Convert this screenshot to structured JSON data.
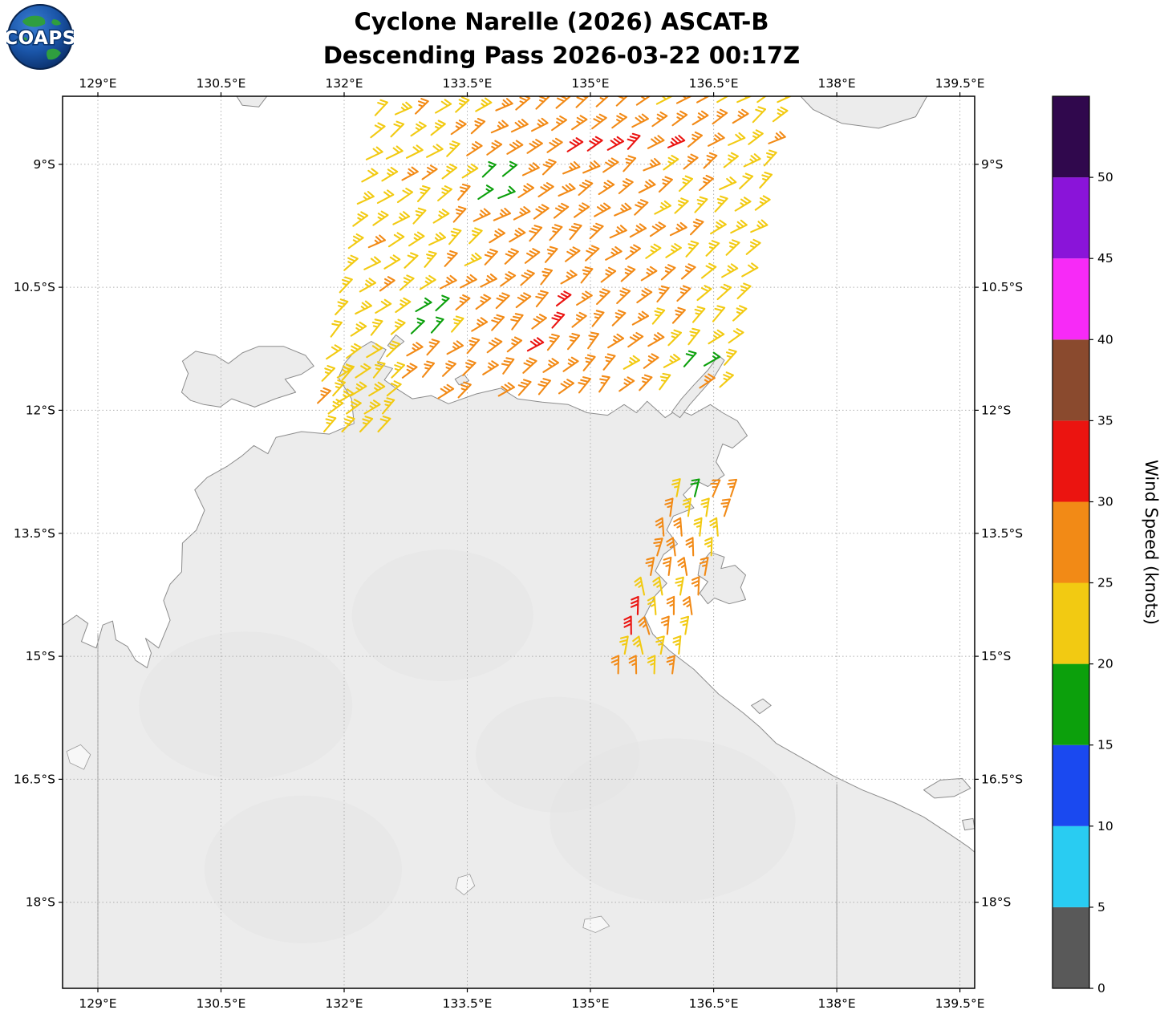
{
  "title": {
    "line1": "Cyclone Narelle (2026) ASCAT-B",
    "line2": "Descending Pass 2026-03-22 00:17Z"
  },
  "logo": {
    "text": "COAPS"
  },
  "chart_data": {
    "type": "wind_barb_map",
    "title": "Cyclone Narelle (2026) ASCAT-B — Descending Pass 2026-03-22 00:17Z",
    "units": "knots",
    "wind_speed_range_depicted": [
      15,
      33
    ],
    "dominant_speeds_note": "Most barbs 20-25 kt (yellow) and 25-30 kt (orange); sparse 15-20 kt (green) and 30-35 kt (red) cells",
    "axes": {
      "extent": {
        "lon_min": 128.57,
        "lon_max": 139.68,
        "lat_min": 8.17,
        "lat_max": 19.05
      },
      "lon_tick_values": [
        129,
        130.5,
        132,
        133.5,
        135,
        136.5,
        138,
        139.5
      ],
      "lon_tick_labels": [
        "129°E",
        "130.5°E",
        "132°E",
        "133.5°E",
        "135°E",
        "136.5°E",
        "138°E",
        "139.5°E"
      ],
      "lat_tick_values": [
        9,
        10.5,
        12,
        13.5,
        15,
        16.5,
        18
      ],
      "lat_tick_labels": [
        "9°S",
        "10.5°S",
        "12°S",
        "13.5°S",
        "15°S",
        "16.5°S",
        "18°S"
      ]
    },
    "colorbar": {
      "label": "Wind Speed (knots)",
      "tick_values": [
        0,
        5,
        10,
        15,
        20,
        25,
        30,
        35,
        40,
        45,
        50
      ],
      "max_value": 55,
      "segments": [
        {
          "from": 0,
          "to": 5,
          "color": "#595959"
        },
        {
          "from": 5,
          "to": 10,
          "color": "#29ccf2"
        },
        {
          "from": 10,
          "to": 15,
          "color": "#1a49f0"
        },
        {
          "from": 15,
          "to": 20,
          "color": "#0ca00c"
        },
        {
          "from": 20,
          "to": 25,
          "color": "#f2ca12"
        },
        {
          "from": 25,
          "to": 30,
          "color": "#f28a16"
        },
        {
          "from": 30,
          "to": 35,
          "color": "#eb1410"
        },
        {
          "from": 35,
          "to": 40,
          "color": "#8a4a2e"
        },
        {
          "from": 40,
          "to": 45,
          "color": "#f72af7"
        },
        {
          "from": 45,
          "to": 50,
          "color": "#8a14d9"
        },
        {
          "from": 50,
          "to": 55,
          "color": "#30084d"
        }
      ]
    },
    "wind_field": {
      "barb_style": {
        "staff_len": 22,
        "full_tick": 9,
        "half_tick": 5,
        "tick_spacing": 4.6,
        "tick_angle_offset": -115,
        "stroke_width": 2.1
      },
      "swaths": [
        {
          "name": "north-swath",
          "lat_start": 8.3,
          "lat_end": 11.95,
          "lat_step": 0.27,
          "lon_left_at_start": 132.38,
          "lon_right_at_start": 137.45,
          "edge_drift_per_lat": -0.2,
          "lon_step": 0.245,
          "row_lat_tilt": -0.04,
          "dir_base": -33,
          "dir_jitter": 14,
          "dir_drift_per_lat": -2.5,
          "speed_base": 23.5,
          "speed_center_boost": 4.5,
          "speed_jitter": 2.2,
          "coast_mask": [
            [
              131.7,
              12.45
            ],
            [
              132.3,
              11.35
            ],
            [
              132.6,
              11.55
            ],
            [
              132.95,
              11.9
            ],
            [
              133.6,
              11.82
            ],
            [
              134.2,
              11.9
            ],
            [
              134.9,
              11.95
            ],
            [
              135.35,
              12.0
            ],
            [
              135.75,
              11.9
            ],
            [
              136.1,
              11.55
            ],
            [
              136.35,
              11.75
            ],
            [
              136.6,
              11.95
            ],
            [
              137.2,
              12.2
            ]
          ]
        },
        {
          "name": "gulf-strip",
          "lat_start": 13.05,
          "lat_end": 15.3,
          "lat_step": 0.24,
          "center_lon_at_start": 136.38,
          "center_drift_per_lat": -0.33,
          "half_width": 0.33,
          "lon_step": 0.22,
          "dir_base": -78,
          "dir_jitter": 16,
          "dir_drift_per_lat": -8,
          "speed_base": 25.5,
          "speed_jitter": 2.2
        },
        {
          "name": "west-patch",
          "lat_start": 11.6,
          "lat_end": 12.45,
          "lat_step": 0.22,
          "center_lon_at_start": 132.3,
          "center_drift_per_lat": -0.25,
          "half_width": 0.38,
          "lon_step": 0.22,
          "dir_base": -40,
          "dir_jitter": 12,
          "dir_drift_per_lat": 0,
          "speed_base": 23,
          "speed_jitter": 1.8
        }
      ],
      "anomalies": [
        {
          "type": "green",
          "lon": 133.85,
          "lat": 9.2,
          "radius": 0.33,
          "speed": 17
        },
        {
          "type": "green",
          "lon": 132.95,
          "lat": 10.9,
          "radius": 0.26,
          "speed": 17
        },
        {
          "type": "green",
          "lon": 136.3,
          "lat": 11.45,
          "radius": 0.22,
          "speed": 17
        },
        {
          "type": "green",
          "lon": 136.22,
          "lat": 13.1,
          "radius": 0.13,
          "speed": 17
        },
        {
          "type": "red",
          "lon": 135.3,
          "lat": 8.78,
          "radius": 0.2,
          "speed": 32
        },
        {
          "type": "red",
          "lon": 136.05,
          "lat": 8.9,
          "radius": 0.16,
          "speed": 32
        },
        {
          "type": "red",
          "lon": 134.55,
          "lat": 10.85,
          "radius": 0.2,
          "speed": 32
        },
        {
          "type": "red",
          "lon": 135.55,
          "lat": 14.6,
          "radius": 0.18,
          "speed": 32
        }
      ]
    },
    "geography": {
      "land_color": "#ececec",
      "coast_color": "#8c8c8c",
      "mainland": [
        [
          128.57,
          14.62
        ],
        [
          128.74,
          14.5
        ],
        [
          128.88,
          14.6
        ],
        [
          128.8,
          14.82
        ],
        [
          128.98,
          14.9
        ],
        [
          129.06,
          14.62
        ],
        [
          129.18,
          14.57
        ],
        [
          129.22,
          14.8
        ],
        [
          129.36,
          14.88
        ],
        [
          129.46,
          15.05
        ],
        [
          129.6,
          15.14
        ],
        [
          129.65,
          14.96
        ],
        [
          129.58,
          14.78
        ],
        [
          129.74,
          14.9
        ],
        [
          129.88,
          14.56
        ],
        [
          129.8,
          14.32
        ],
        [
          129.88,
          14.12
        ],
        [
          130.02,
          13.97
        ],
        [
          130.03,
          13.62
        ],
        [
          130.2,
          13.46
        ],
        [
          130.3,
          13.22
        ],
        [
          130.18,
          12.97
        ],
        [
          130.33,
          12.82
        ],
        [
          130.58,
          12.68
        ],
        [
          130.75,
          12.56
        ],
        [
          130.9,
          12.43
        ],
        [
          131.07,
          12.53
        ],
        [
          131.17,
          12.33
        ],
        [
          131.48,
          12.26
        ],
        [
          131.82,
          12.29
        ],
        [
          132.12,
          12.16
        ],
        [
          132.09,
          11.86
        ],
        [
          131.93,
          11.6
        ],
        [
          132.01,
          11.42
        ],
        [
          132.13,
          11.28
        ],
        [
          132.33,
          11.16
        ],
        [
          132.51,
          11.26
        ],
        [
          132.41,
          11.43
        ],
        [
          132.59,
          11.49
        ],
        [
          132.49,
          11.63
        ],
        [
          132.63,
          11.73
        ],
        [
          132.83,
          11.86
        ],
        [
          133.06,
          11.82
        ],
        [
          133.27,
          11.92
        ],
        [
          133.61,
          11.8
        ],
        [
          133.91,
          11.73
        ],
        [
          134.11,
          11.86
        ],
        [
          134.41,
          11.9
        ],
        [
          134.73,
          11.93
        ],
        [
          134.96,
          12.03
        ],
        [
          135.21,
          12.06
        ],
        [
          135.41,
          11.93
        ],
        [
          135.56,
          12.03
        ],
        [
          135.69,
          11.89
        ],
        [
          135.91,
          12.09
        ],
        [
          136.06,
          11.99
        ],
        [
          136.23,
          12.06
        ],
        [
          136.46,
          11.93
        ],
        [
          136.61,
          12.03
        ],
        [
          136.79,
          12.13
        ],
        [
          136.91,
          12.31
        ],
        [
          136.73,
          12.46
        ],
        [
          136.61,
          12.41
        ],
        [
          136.53,
          12.63
        ],
        [
          136.63,
          12.79
        ],
        [
          136.43,
          12.93
        ],
        [
          136.29,
          12.86
        ],
        [
          136.13,
          13.03
        ],
        [
          136.26,
          13.19
        ],
        [
          136.01,
          13.29
        ],
        [
          135.93,
          13.46
        ],
        [
          136.06,
          13.63
        ],
        [
          135.89,
          13.76
        ],
        [
          135.79,
          13.96
        ],
        [
          135.93,
          14.11
        ],
        [
          135.79,
          14.26
        ],
        [
          135.66,
          14.51
        ],
        [
          135.76,
          14.73
        ],
        [
          135.96,
          14.93
        ],
        [
          136.26,
          15.16
        ],
        [
          136.56,
          15.46
        ],
        [
          136.86,
          15.69
        ],
        [
          137.06,
          15.86
        ],
        [
          137.26,
          16.06
        ],
        [
          137.61,
          16.26
        ],
        [
          137.96,
          16.46
        ],
        [
          138.31,
          16.63
        ],
        [
          138.71,
          16.79
        ],
        [
          139.06,
          16.96
        ],
        [
          139.36,
          17.16
        ],
        [
          139.61,
          17.33
        ],
        [
          139.68,
          17.39
        ],
        [
          139.68,
          19.05
        ],
        [
          128.57,
          19.05
        ]
      ],
      "islands": [
        [
          [
            130.02,
            11.78
          ],
          [
            130.1,
            11.55
          ],
          [
            130.03,
            11.4
          ],
          [
            130.19,
            11.28
          ],
          [
            130.43,
            11.33
          ],
          [
            130.59,
            11.43
          ],
          [
            130.76,
            11.3
          ],
          [
            130.96,
            11.22
          ],
          [
            131.26,
            11.22
          ],
          [
            131.53,
            11.33
          ],
          [
            131.63,
            11.46
          ],
          [
            131.48,
            11.56
          ],
          [
            131.28,
            11.62
          ],
          [
            131.41,
            11.78
          ],
          [
            131.16,
            11.86
          ],
          [
            130.91,
            11.96
          ],
          [
            130.63,
            11.86
          ],
          [
            130.49,
            11.96
          ],
          [
            130.29,
            11.93
          ],
          [
            130.13,
            11.88
          ]
        ],
        [
          [
            132.53,
            11.21
          ],
          [
            132.63,
            11.08
          ],
          [
            132.73,
            11.16
          ],
          [
            132.61,
            11.26
          ]
        ],
        [
          [
            135.99,
            12.02
          ],
          [
            136.11,
            11.86
          ],
          [
            136.26,
            11.69
          ],
          [
            136.43,
            11.51
          ],
          [
            136.56,
            11.33
          ],
          [
            136.63,
            11.39
          ],
          [
            136.51,
            11.59
          ],
          [
            136.36,
            11.76
          ],
          [
            136.21,
            11.93
          ],
          [
            136.09,
            12.09
          ]
        ],
        [
          [
            133.35,
            11.62
          ],
          [
            133.46,
            11.56
          ],
          [
            133.52,
            11.64
          ],
          [
            133.4,
            11.69
          ]
        ],
        [
          [
            136.33,
            13.89
          ],
          [
            136.46,
            13.73
          ],
          [
            136.63,
            13.79
          ],
          [
            136.59,
            13.93
          ],
          [
            136.76,
            13.89
          ],
          [
            136.89,
            14.01
          ],
          [
            136.83,
            14.16
          ],
          [
            136.89,
            14.31
          ],
          [
            136.69,
            14.36
          ],
          [
            136.51,
            14.29
          ],
          [
            136.43,
            14.36
          ],
          [
            136.33,
            14.23
          ],
          [
            136.43,
            14.09
          ],
          [
            136.31,
            14.01
          ]
        ],
        [
          [
            136.96,
            15.6
          ],
          [
            137.1,
            15.52
          ],
          [
            137.2,
            15.6
          ],
          [
            137.06,
            15.7
          ]
        ],
        [
          [
            139.06,
            16.63
          ],
          [
            139.26,
            16.51
          ],
          [
            139.53,
            16.49
          ],
          [
            139.63,
            16.61
          ],
          [
            139.43,
            16.71
          ],
          [
            139.19,
            16.73
          ]
        ],
        [
          [
            139.53,
            17.0
          ],
          [
            139.66,
            16.98
          ],
          [
            139.68,
            17.1
          ],
          [
            139.56,
            17.12
          ]
        ],
        [
          [
            137.56,
            8.17
          ],
          [
            139.1,
            8.17
          ],
          [
            138.96,
            8.42
          ],
          [
            138.51,
            8.56
          ],
          [
            138.06,
            8.5
          ],
          [
            137.71,
            8.33
          ]
        ],
        [
          [
            130.69,
            8.17
          ],
          [
            131.06,
            8.17
          ],
          [
            130.96,
            8.3
          ],
          [
            130.76,
            8.28
          ]
        ]
      ],
      "lakes": [
        [
          [
            128.62,
            16.16
          ],
          [
            128.79,
            16.08
          ],
          [
            128.91,
            16.2
          ],
          [
            128.83,
            16.38
          ],
          [
            128.66,
            16.3
          ]
        ],
        [
          [
            133.39,
            17.7
          ],
          [
            133.53,
            17.66
          ],
          [
            133.59,
            17.8
          ],
          [
            133.46,
            17.91
          ],
          [
            133.36,
            17.83
          ]
        ],
        [
          [
            134.93,
            18.21
          ],
          [
            135.13,
            18.17
          ],
          [
            135.23,
            18.29
          ],
          [
            135.06,
            18.37
          ],
          [
            134.91,
            18.31
          ]
        ]
      ],
      "state_borders": [
        {
          "lon": 129,
          "lat_from": 14.72,
          "lat_to": 19.05
        },
        {
          "lon": 138,
          "lat_from": 16.56,
          "lat_to": 19.05
        }
      ],
      "terrain_patches": [
        {
          "lon": 130.8,
          "lat": 15.6,
          "rx": 1.3,
          "ry": 0.9
        },
        {
          "lon": 133.2,
          "lat": 14.5,
          "rx": 1.1,
          "ry": 0.8
        },
        {
          "lon": 136.0,
          "lat": 17.0,
          "rx": 1.5,
          "ry": 1.0
        },
        {
          "lon": 131.5,
          "lat": 17.6,
          "rx": 1.2,
          "ry": 0.9
        },
        {
          "lon": 134.6,
          "lat": 16.2,
          "rx": 1.0,
          "ry": 0.7
        }
      ]
    }
  }
}
